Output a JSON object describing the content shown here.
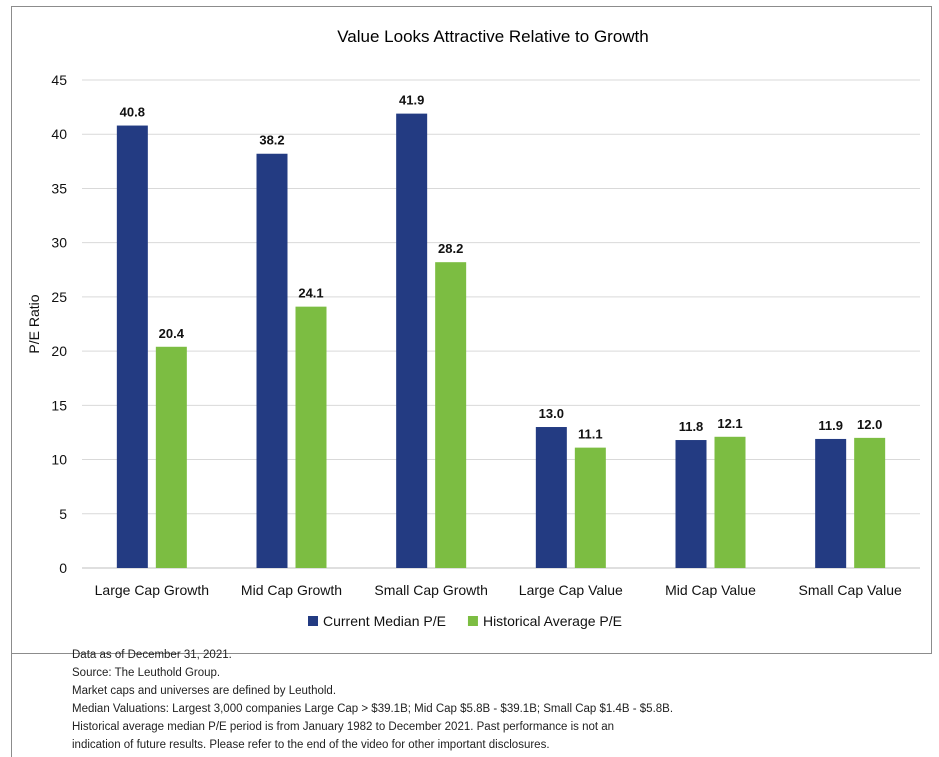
{
  "chart_data": {
    "type": "bar",
    "title": "Value Looks Attractive Relative to Growth",
    "ylabel": "P/E Ratio",
    "xlabel": "",
    "ylim": [
      0,
      45
    ],
    "yticks": [
      0,
      5,
      10,
      15,
      20,
      25,
      30,
      35,
      40,
      45
    ],
    "grid": true,
    "legend_position": "bottom",
    "categories": [
      "Large Cap Growth",
      "Mid Cap Growth",
      "Small Cap Growth",
      "Large Cap Value",
      "Mid Cap Value",
      "Small Cap Value"
    ],
    "series": [
      {
        "name": "Current Median P/E",
        "color": "#233b82",
        "values": [
          40.8,
          38.2,
          41.9,
          13.0,
          11.8,
          11.9
        ],
        "labels": [
          "40.8",
          "38.2",
          "41.9",
          "13.0",
          "11.8",
          "11.9"
        ]
      },
      {
        "name": "Historical Average P/E",
        "color": "#7cbd42",
        "values": [
          20.4,
          24.1,
          28.2,
          11.1,
          12.1,
          12.0
        ],
        "labels": [
          "20.4",
          "24.1",
          "28.2",
          "11.1",
          "12.1",
          "12.0"
        ]
      }
    ]
  },
  "notes": [
    "Data as of December 31, 2021.",
    "Source: The Leuthold Group.",
    "Market caps and universes are defined by Leuthold.",
    "Median Valuations: Largest 3,000 companies Large Cap > $39.1B; Mid Cap $5.8B - $39.1B; Small Cap $1.4B - $5.8B.",
    "Historical average median P/E period is from January 1982 to December 2021. Past performance is not an",
    "indication of future results. Please refer to the end of the video for other important disclosures."
  ]
}
